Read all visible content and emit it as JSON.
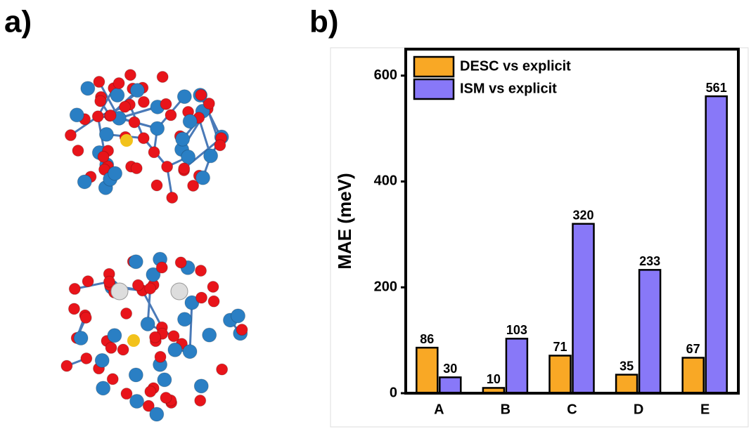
{
  "panel_labels": [
    "a)",
    "b)"
  ],
  "chart_data": {
    "type": "bar",
    "y_label": "MAE (meV)",
    "categories": [
      "A",
      "B",
      "C",
      "D",
      "E"
    ],
    "series": [
      {
        "name": "DESC vs explicit",
        "color": "#f9a825",
        "values": [
          86,
          10,
          71,
          35,
          67
        ]
      },
      {
        "name": "ISM vs explicit",
        "color": "#8878f8",
        "values": [
          30,
          103,
          320,
          233,
          561
        ]
      }
    ],
    "ylim": [
      0,
      650
    ],
    "yticks": [
      0,
      200,
      400,
      600
    ],
    "legend": "upper left",
    "value_labels_shown": true
  }
}
